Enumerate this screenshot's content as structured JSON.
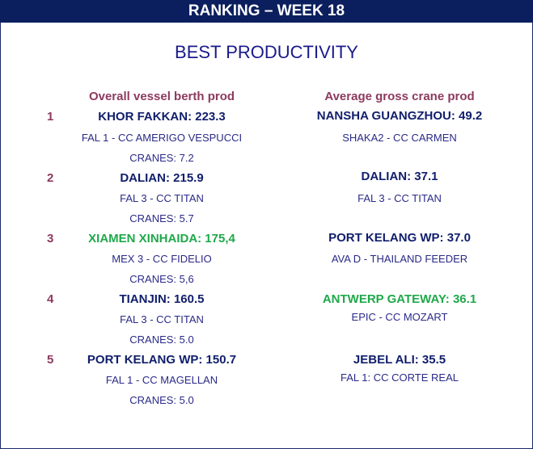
{
  "header": {
    "title": "RANKING – WEEK 18"
  },
  "section": {
    "title": "BEST PRODUCTIVITY"
  },
  "columns": {
    "left_heading": "Overall vessel berth prod",
    "right_heading": "Average gross crane prod"
  },
  "colors": {
    "banner": "#0b1f5e",
    "rank": "#8c3a5e",
    "port": "#101e6b",
    "highlight": "#1fa84a",
    "detail": "#2a2a88"
  },
  "left_rankings": [
    {
      "rank": "1",
      "port": "KHOR FAKKAN: 223.3",
      "service": "FAL 1  - CC AMERIGO VESPUCCI",
      "cranes": "CRANES: 7.2",
      "highlight": false
    },
    {
      "rank": "2",
      "port": "DALIAN: 215.9",
      "service": "FAL 3  - CC TITAN",
      "cranes": "CRANES: 5.7",
      "highlight": false
    },
    {
      "rank": "3",
      "port": "XIAMEN XINHAIDA: 175,4",
      "service": "MEX 3  - CC FIDELIO",
      "cranes": "CRANES: 5,6",
      "highlight": true
    },
    {
      "rank": "4",
      "port": "TIANJIN: 160.5",
      "service": "FAL 3  - CC TITAN",
      "cranes": "CRANES: 5.0",
      "highlight": false
    },
    {
      "rank": "5",
      "port": "PORT KELANG WP: 150.7",
      "service": "FAL 1  - CC MAGELLAN",
      "cranes": "CRANES: 5.0",
      "highlight": false
    }
  ],
  "right_rankings": [
    {
      "port": "NANSHA GUANGZHOU: 49.2",
      "service": "SHAKA2 - CC CARMEN",
      "highlight": false
    },
    {
      "port": "DALIAN: 37.1",
      "service": "FAL 3 - CC TITAN",
      "highlight": false
    },
    {
      "port": "PORT KELANG WP: 37.0",
      "service": "AVA D - THAILAND FEEDER",
      "highlight": false
    },
    {
      "port": "ANTWERP GATEWAY: 36.1",
      "service": "EPIC - CC MOZART",
      "highlight": true
    },
    {
      "port": "JEBEL ALI: 35.5",
      "service": "FAL 1: CC CORTE REAL",
      "highlight": false
    }
  ]
}
